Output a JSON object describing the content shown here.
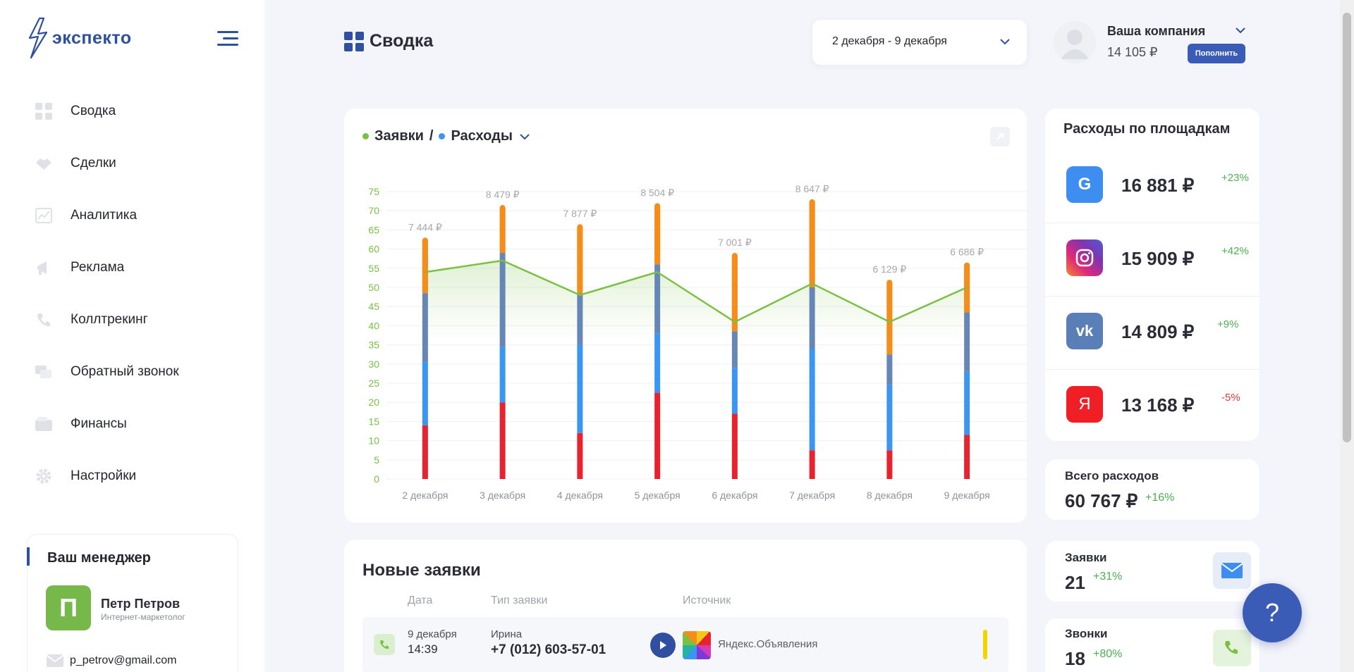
{
  "brand": {
    "name": "экспекто"
  },
  "nav": {
    "items": [
      {
        "label": "Сводка",
        "icon": "grid-icon"
      },
      {
        "label": "Сделки",
        "icon": "handshake-icon"
      },
      {
        "label": "Аналитика",
        "icon": "analytics-icon"
      },
      {
        "label": "Реклама",
        "icon": "megaphone-icon"
      },
      {
        "label": "Коллтрекинг",
        "icon": "phone-icon"
      },
      {
        "label": "Обратный звонок",
        "icon": "callback-icon"
      },
      {
        "label": "Финансы",
        "icon": "wallet-icon"
      },
      {
        "label": "Настройки",
        "icon": "gear-icon"
      }
    ]
  },
  "manager": {
    "title": "Ваш менеджер",
    "initial": "П",
    "name": "Петр Петров",
    "role": "Интернет-маркетолог",
    "email": "p_petrov@gmail.com"
  },
  "header": {
    "title": "Сводка",
    "date_range": "2 декабря - 9 декабря",
    "company_name": "Ваша компания",
    "company_balance": "14 105 ₽",
    "topup_label": "Пополнить"
  },
  "chart_card": {
    "title_left": "Заявки",
    "separator": "/",
    "title_right": "Расходы"
  },
  "chart_data": {
    "type": "bar",
    "categories": [
      "2 декабря",
      "3 декабря",
      "4 декабря",
      "5 декабря",
      "6 декабря",
      "7 декабря",
      "8 декабря",
      "9 декабря"
    ],
    "ylim": [
      0,
      75
    ],
    "yticks": [
      0,
      5,
      10,
      15,
      20,
      25,
      30,
      35,
      40,
      45,
      50,
      55,
      60,
      65,
      70,
      75
    ],
    "bar_labels": [
      "7 444 ₽",
      "8 479 ₽",
      "7 877 ₽",
      "8 504 ₽",
      "7 001 ₽",
      "8 647 ₽",
      "6 129 ₽",
      "6 686 ₽"
    ],
    "stack_colors": [
      "#e8232f",
      "#3a96f2",
      "#6687b5",
      "#f58d1b"
    ],
    "stacks": [
      [
        14,
        16.5,
        18,
        14.5
      ],
      [
        20,
        14.5,
        24.5,
        12.5
      ],
      [
        12,
        23,
        13.5,
        18
      ],
      [
        22.5,
        15.5,
        18,
        16
      ],
      [
        17,
        12,
        9.5,
        20.5
      ],
      [
        7.5,
        26.5,
        16,
        23
      ],
      [
        7.5,
        17,
        8,
        19.5
      ],
      [
        11.5,
        16.5,
        15.5,
        13
      ]
    ],
    "line": {
      "color": "#7ac143",
      "values": [
        54,
        57,
        48,
        54,
        41,
        51,
        41,
        50
      ]
    }
  },
  "ads": {
    "title": "Расходы по площадкам",
    "rows": [
      {
        "icon": "google-icon",
        "glyph": "G",
        "color": "#3d8ef0",
        "value": "16 881 ₽",
        "change": "+23%",
        "trend": "pos"
      },
      {
        "icon": "instagram-icon",
        "glyph": "",
        "color": "#c13584",
        "value": "15 909 ₽",
        "change": "+42%",
        "trend": "pos"
      },
      {
        "icon": "vk-icon",
        "glyph": "vk",
        "color": "#5a7fb6",
        "value": "14 809 ₽",
        "change": "+9%",
        "trend": "pos"
      },
      {
        "icon": "yandex-icon",
        "glyph": "Я",
        "color": "#ef1f25",
        "value": "13 168 ₽",
        "change": "-5%",
        "trend": "neg"
      }
    ]
  },
  "totals": {
    "spend_label": "Всего расходов",
    "spend_value": "60 767 ₽",
    "spend_change": "+16%",
    "leads_label": "Заявки",
    "leads_value": "21",
    "leads_change": "+31%",
    "calls_label": "Звонки",
    "calls_value": "18",
    "calls_change": "+80%"
  },
  "leads": {
    "title": "Новые заявки",
    "columns": [
      "Дата",
      "Тип заявки",
      "Источник"
    ],
    "rows": [
      {
        "date": "9 декабря",
        "time": "14:39",
        "name": "Ирина",
        "phone": "+7 (012) 603-57-01",
        "source": "Яндекс.Объявления"
      }
    ]
  },
  "help": {
    "label": "?"
  }
}
